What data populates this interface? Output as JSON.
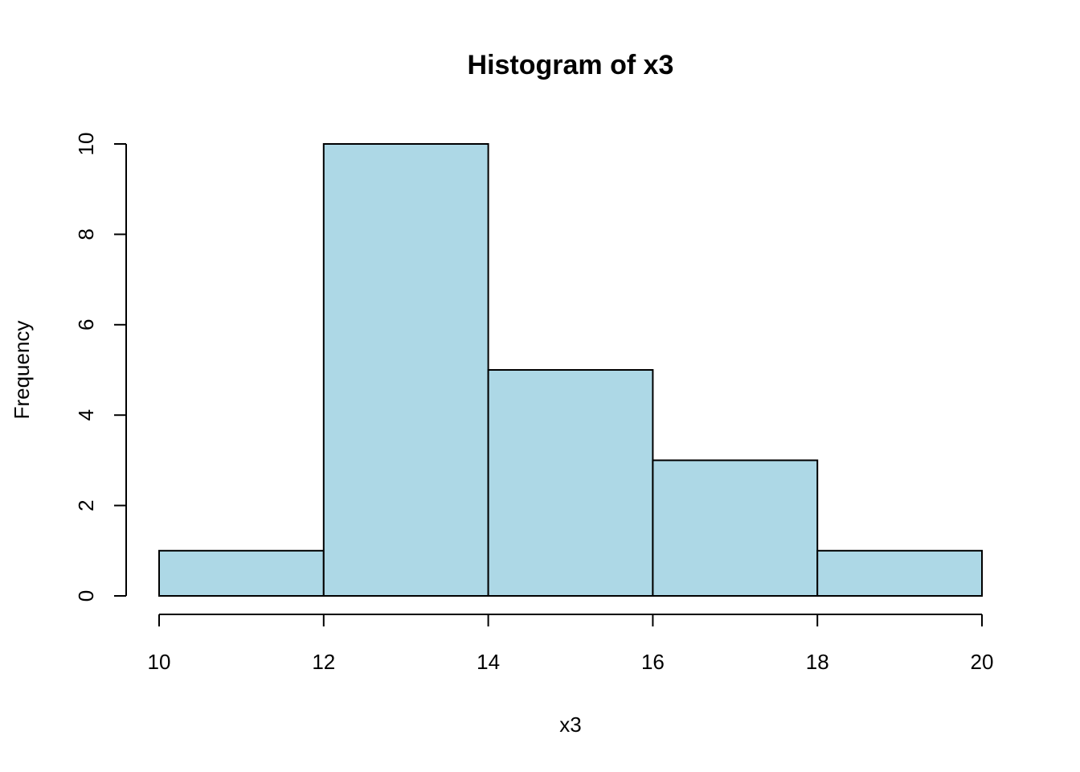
{
  "chart_data": {
    "type": "bar",
    "title": "Histogram of x3",
    "xlabel": "x3",
    "ylabel": "Frequency",
    "bins": [
      {
        "from": 10,
        "to": 12,
        "count": 1
      },
      {
        "from": 12,
        "to": 14,
        "count": 10
      },
      {
        "from": 14,
        "to": 16,
        "count": 5
      },
      {
        "from": 16,
        "to": 18,
        "count": 3
      },
      {
        "from": 18,
        "to": 20,
        "count": 1
      }
    ],
    "xlim": [
      10,
      20
    ],
    "ylim": [
      0,
      10
    ],
    "x_ticks": [
      "10",
      "12",
      "14",
      "16",
      "18",
      "20"
    ],
    "y_ticks": [
      "0",
      "2",
      "4",
      "6",
      "8",
      "10"
    ],
    "bar_color": "#add8e6",
    "grid": false,
    "legend": "none"
  }
}
